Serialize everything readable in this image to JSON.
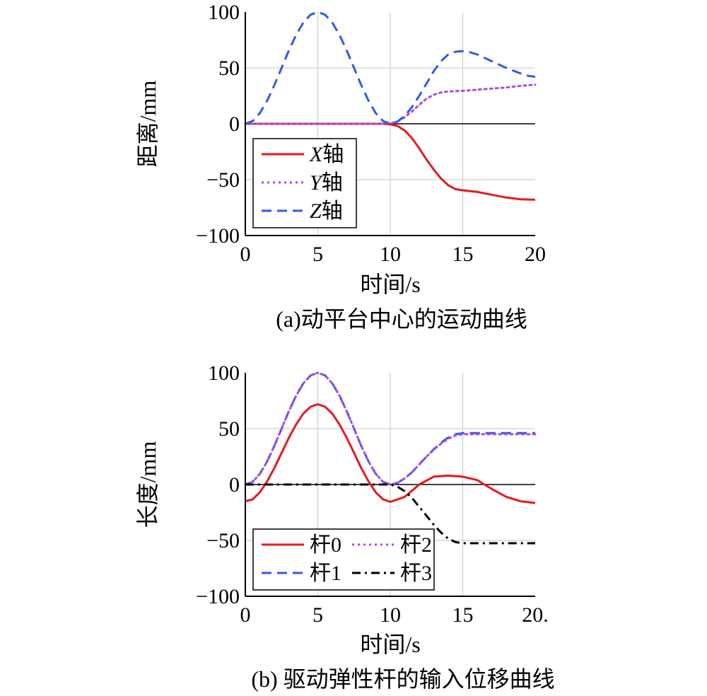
{
  "chart_data": [
    {
      "type": "line",
      "caption": "(a)动平台中心的运动曲线",
      "xlabel": "时间/s",
      "ylabel": "距离/mm",
      "xlim": [
        0,
        20
      ],
      "ylim": [
        -100,
        100
      ],
      "xticks": [
        "0",
        "5",
        "10",
        "15",
        "20"
      ],
      "yticks": [
        "100",
        "50",
        "0",
        "−50",
        "−100"
      ],
      "grid": true,
      "legend_position": "bottom-left",
      "legend_columns": 1,
      "series": [
        {
          "name": "X轴",
          "name_prefix": "X",
          "name_suffix": "轴",
          "color": "#e8191e",
          "dash": "solid",
          "x": [
            0,
            9.5,
            10,
            10.5,
            11,
            11.5,
            12,
            12.5,
            13,
            13.5,
            14,
            14.5,
            15,
            16,
            17,
            18,
            19,
            20
          ],
          "y": [
            0,
            0,
            -0.5,
            -2,
            -6,
            -13,
            -22,
            -32,
            -41,
            -49,
            -55,
            -58.5,
            -59.5,
            -61,
            -63.5,
            -66,
            -67.5,
            -68
          ]
        },
        {
          "name": "Y轴",
          "name_prefix": "Y",
          "name_suffix": "轴",
          "color": "#a64ee6",
          "dash": "dot",
          "x": [
            0,
            9.5,
            10,
            10.5,
            11,
            11.5,
            12,
            12.5,
            13,
            13.5,
            14,
            15,
            16,
            17,
            18,
            19,
            20
          ],
          "y": [
            0,
            0,
            0.5,
            2,
            6,
            11,
            17,
            22.5,
            26,
            28,
            29,
            29.5,
            30.5,
            31.5,
            32.5,
            34,
            35
          ]
        },
        {
          "name": "Z轴",
          "name_prefix": "Z",
          "name_suffix": "轴",
          "color": "#2f5bea",
          "dash": "dash",
          "x": [
            0,
            0.5,
            1,
            1.5,
            2,
            2.5,
            3,
            3.5,
            4,
            4.5,
            5,
            5.5,
            6,
            6.5,
            7,
            7.5,
            8,
            8.5,
            9,
            9.5,
            10,
            10.5,
            11,
            11.5,
            12,
            12.5,
            13,
            13.5,
            14,
            14.5,
            15,
            15.5,
            16,
            16.5,
            17,
            17.5,
            18,
            18.5,
            19,
            19.5,
            20
          ],
          "y": [
            0,
            2.4,
            9.5,
            20.6,
            34.5,
            50,
            65.5,
            79.4,
            90.5,
            97.6,
            100,
            97.6,
            90.5,
            79.4,
            65.5,
            50,
            34.5,
            20.6,
            9.5,
            2.4,
            0,
            2,
            7,
            15,
            25,
            36,
            47,
            56,
            62,
            64.5,
            65,
            64,
            62,
            59,
            56,
            53,
            50,
            47.5,
            45,
            43,
            42
          ]
        }
      ]
    },
    {
      "type": "line",
      "caption": "(b) 驱动弹性杆的输入位移曲线",
      "xlabel": "时间/s",
      "ylabel": "长度/mm",
      "xlim": [
        0,
        20
      ],
      "ylim": [
        -100,
        100
      ],
      "xticks": [
        "0",
        "5",
        "10",
        "15",
        "20."
      ],
      "yticks": [
        "100",
        "50",
        "0",
        "−50",
        "−100"
      ],
      "grid": true,
      "legend_position": "bottom-left",
      "legend_columns": 2,
      "series": [
        {
          "name": "杆0",
          "color": "#e8191e",
          "dash": "solid",
          "x": [
            0,
            0.5,
            1,
            1.5,
            2,
            2.5,
            3,
            3.5,
            4,
            4.5,
            5,
            5.5,
            6,
            6.5,
            7,
            7.5,
            8,
            8.5,
            9,
            9.5,
            10,
            11,
            12,
            13,
            14,
            15,
            16,
            17,
            18,
            19,
            20
          ],
          "y": [
            -15,
            -13.3,
            -7,
            2.7,
            14.7,
            28.3,
            41.7,
            53.7,
            63.4,
            69.6,
            71.8,
            69.6,
            63.4,
            53.7,
            41.7,
            28.3,
            14.7,
            2.7,
            -7,
            -13.3,
            -15.5,
            -11,
            0,
            7,
            8,
            7,
            4,
            -4,
            -11,
            -15,
            -16.5
          ]
        },
        {
          "name": "杆1",
          "color": "#2f5bea",
          "dash": "dash",
          "x": [
            0,
            0.5,
            1,
            1.5,
            2,
            2.5,
            3,
            3.5,
            4,
            4.5,
            5,
            5.5,
            6,
            6.5,
            7,
            7.5,
            8,
            8.5,
            9,
            9.5,
            10,
            10.5,
            11,
            11.5,
            12,
            12.5,
            13,
            13.5,
            14,
            14.5,
            15,
            16,
            17,
            18,
            19,
            20
          ],
          "y": [
            0,
            2.4,
            9.5,
            20.6,
            34.5,
            50,
            65.5,
            79.4,
            90.5,
            97.6,
            100,
            97.6,
            90.5,
            79.4,
            65.5,
            50,
            34.5,
            20.6,
            9.5,
            2.4,
            0,
            1.5,
            5.5,
            11,
            18,
            25,
            31.5,
            37.5,
            42,
            45,
            46,
            46,
            46,
            46,
            46,
            46
          ]
        },
        {
          "name": "杆2",
          "color": "#a64ee6",
          "dash": "dot",
          "x": [
            0,
            0.5,
            1,
            1.5,
            2,
            2.5,
            3,
            3.5,
            4,
            4.5,
            5,
            5.5,
            6,
            6.5,
            7,
            7.5,
            8,
            8.5,
            9,
            9.5,
            10,
            10.5,
            11,
            11.5,
            12,
            12.5,
            13,
            13.5,
            14,
            14.5,
            15,
            16,
            17,
            18,
            19,
            20
          ],
          "y": [
            0,
            2.4,
            9.5,
            20.6,
            34.5,
            50,
            65.5,
            79.4,
            90.5,
            97.6,
            100,
            97.6,
            90.5,
            79.4,
            65.5,
            50,
            34.5,
            20.6,
            9.5,
            2.4,
            0,
            1.5,
            5.5,
            11,
            18,
            25,
            31,
            36.5,
            41,
            44,
            45,
            45,
            45,
            45,
            45,
            45
          ]
        },
        {
          "name": "杆3",
          "color": "#000000",
          "dash": "dashdot",
          "x": [
            0,
            10,
            10.5,
            11,
            11.5,
            12,
            12.5,
            13,
            13.5,
            14,
            14.5,
            15,
            16,
            17,
            18,
            19,
            20
          ],
          "y": [
            0,
            0,
            -2,
            -6,
            -12,
            -20,
            -28,
            -36,
            -43,
            -48.5,
            -51.5,
            -52.5,
            -52.5,
            -52.5,
            -52.5,
            -52.5,
            -52.5
          ]
        }
      ]
    }
  ]
}
